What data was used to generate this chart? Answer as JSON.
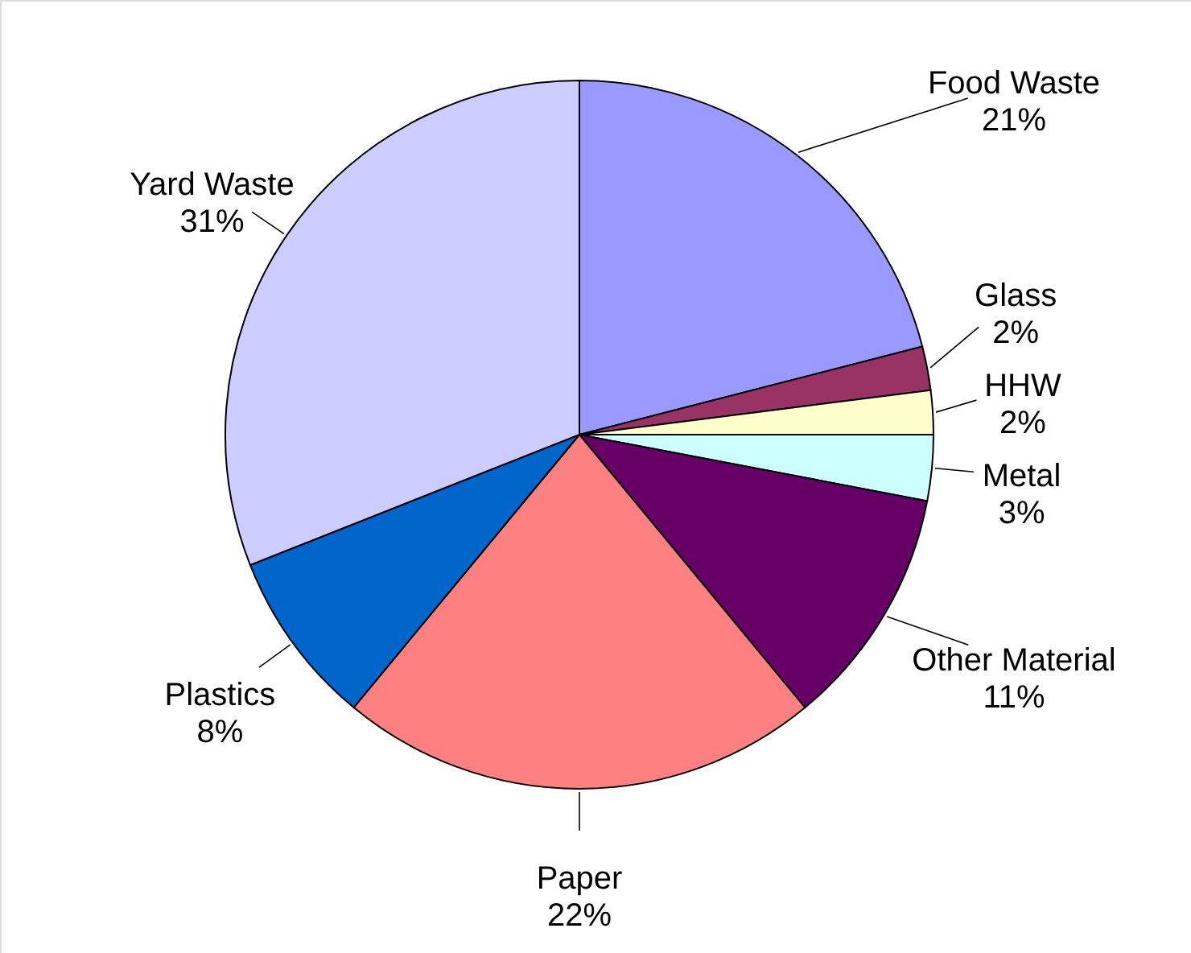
{
  "chart_data": {
    "type": "pie",
    "categories": [
      "Food Waste",
      "Glass",
      "HHW",
      "Metal",
      "Other Material",
      "Paper",
      "Plastics",
      "Yard Waste"
    ],
    "values": [
      21,
      2,
      2,
      3,
      11,
      22,
      8,
      31
    ],
    "colors": [
      "#9999ff",
      "#993366",
      "#ffffcc",
      "#ccffff",
      "#660066",
      "#ff8080",
      "#0066cc",
      "#ccccff"
    ],
    "value_labels": [
      "21%",
      "2%",
      "2%",
      "3%",
      "11%",
      "22%",
      "8%",
      "31%"
    ]
  }
}
